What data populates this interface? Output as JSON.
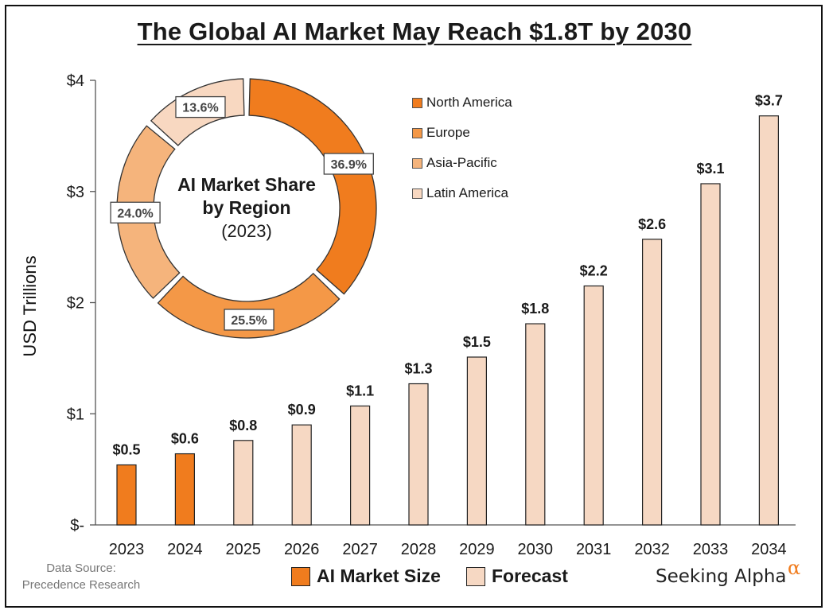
{
  "title": "The Global AI Market May Reach $1.8T by 2030",
  "colors": {
    "actual": "#f07c1e",
    "forecast": "#f6d8c3",
    "north_america": "#f07c1e",
    "europe": "#f49847",
    "asia_pacific": "#f5b47c",
    "latin_america": "#f8d8c1"
  },
  "chart_data": [
    {
      "type": "bar",
      "title": "The Global AI Market May Reach $1.8T by 2030",
      "ylabel": "USD Trillions",
      "xlabel": "",
      "ylim": [
        0,
        4
      ],
      "yticks": [
        {
          "value": 0,
          "label": "$-"
        },
        {
          "value": 1,
          "label": "$1"
        },
        {
          "value": 2,
          "label": "$2"
        },
        {
          "value": 3,
          "label": "$3"
        },
        {
          "value": 4,
          "label": "$4"
        }
      ],
      "categories": [
        "2023",
        "2024",
        "2025",
        "2026",
        "2027",
        "2028",
        "2029",
        "2030",
        "2031",
        "2032",
        "2033",
        "2034"
      ],
      "values": [
        0.54,
        0.64,
        0.76,
        0.9,
        1.07,
        1.27,
        1.51,
        1.81,
        2.15,
        2.57,
        3.07,
        3.68
      ],
      "data_labels": [
        "$0.5",
        "$0.6",
        "$0.8",
        "$0.9",
        "$1.1",
        "$1.3",
        "$1.5",
        "$1.8",
        "$2.2",
        "$2.6",
        "$3.1",
        "$3.7"
      ],
      "kind": [
        "actual",
        "actual",
        "forecast",
        "forecast",
        "forecast",
        "forecast",
        "forecast",
        "forecast",
        "forecast",
        "forecast",
        "forecast",
        "forecast"
      ],
      "series_names": {
        "actual": "AI Market Size",
        "forecast": "Forecast"
      },
      "legend": "bottom",
      "grid": false
    },
    {
      "type": "pie",
      "style": "donut",
      "title_lines": [
        "AI Market Share",
        "by Region",
        "(2023)"
      ],
      "slices": [
        {
          "name": "North America",
          "value": 36.9,
          "label": "36.9%"
        },
        {
          "name": "Europe",
          "value": 25.5,
          "label": "25.5%"
        },
        {
          "name": "Asia-Pacific",
          "value": 24.0,
          "label": "24.0%"
        },
        {
          "name": "Latin America",
          "value": 13.6,
          "label": "13.6%"
        }
      ],
      "legend": "right"
    }
  ],
  "source": {
    "line1": "Data Source:",
    "line2": "Precedence Research"
  },
  "brand": {
    "name": "Seeking Alpha",
    "mark": "α"
  }
}
